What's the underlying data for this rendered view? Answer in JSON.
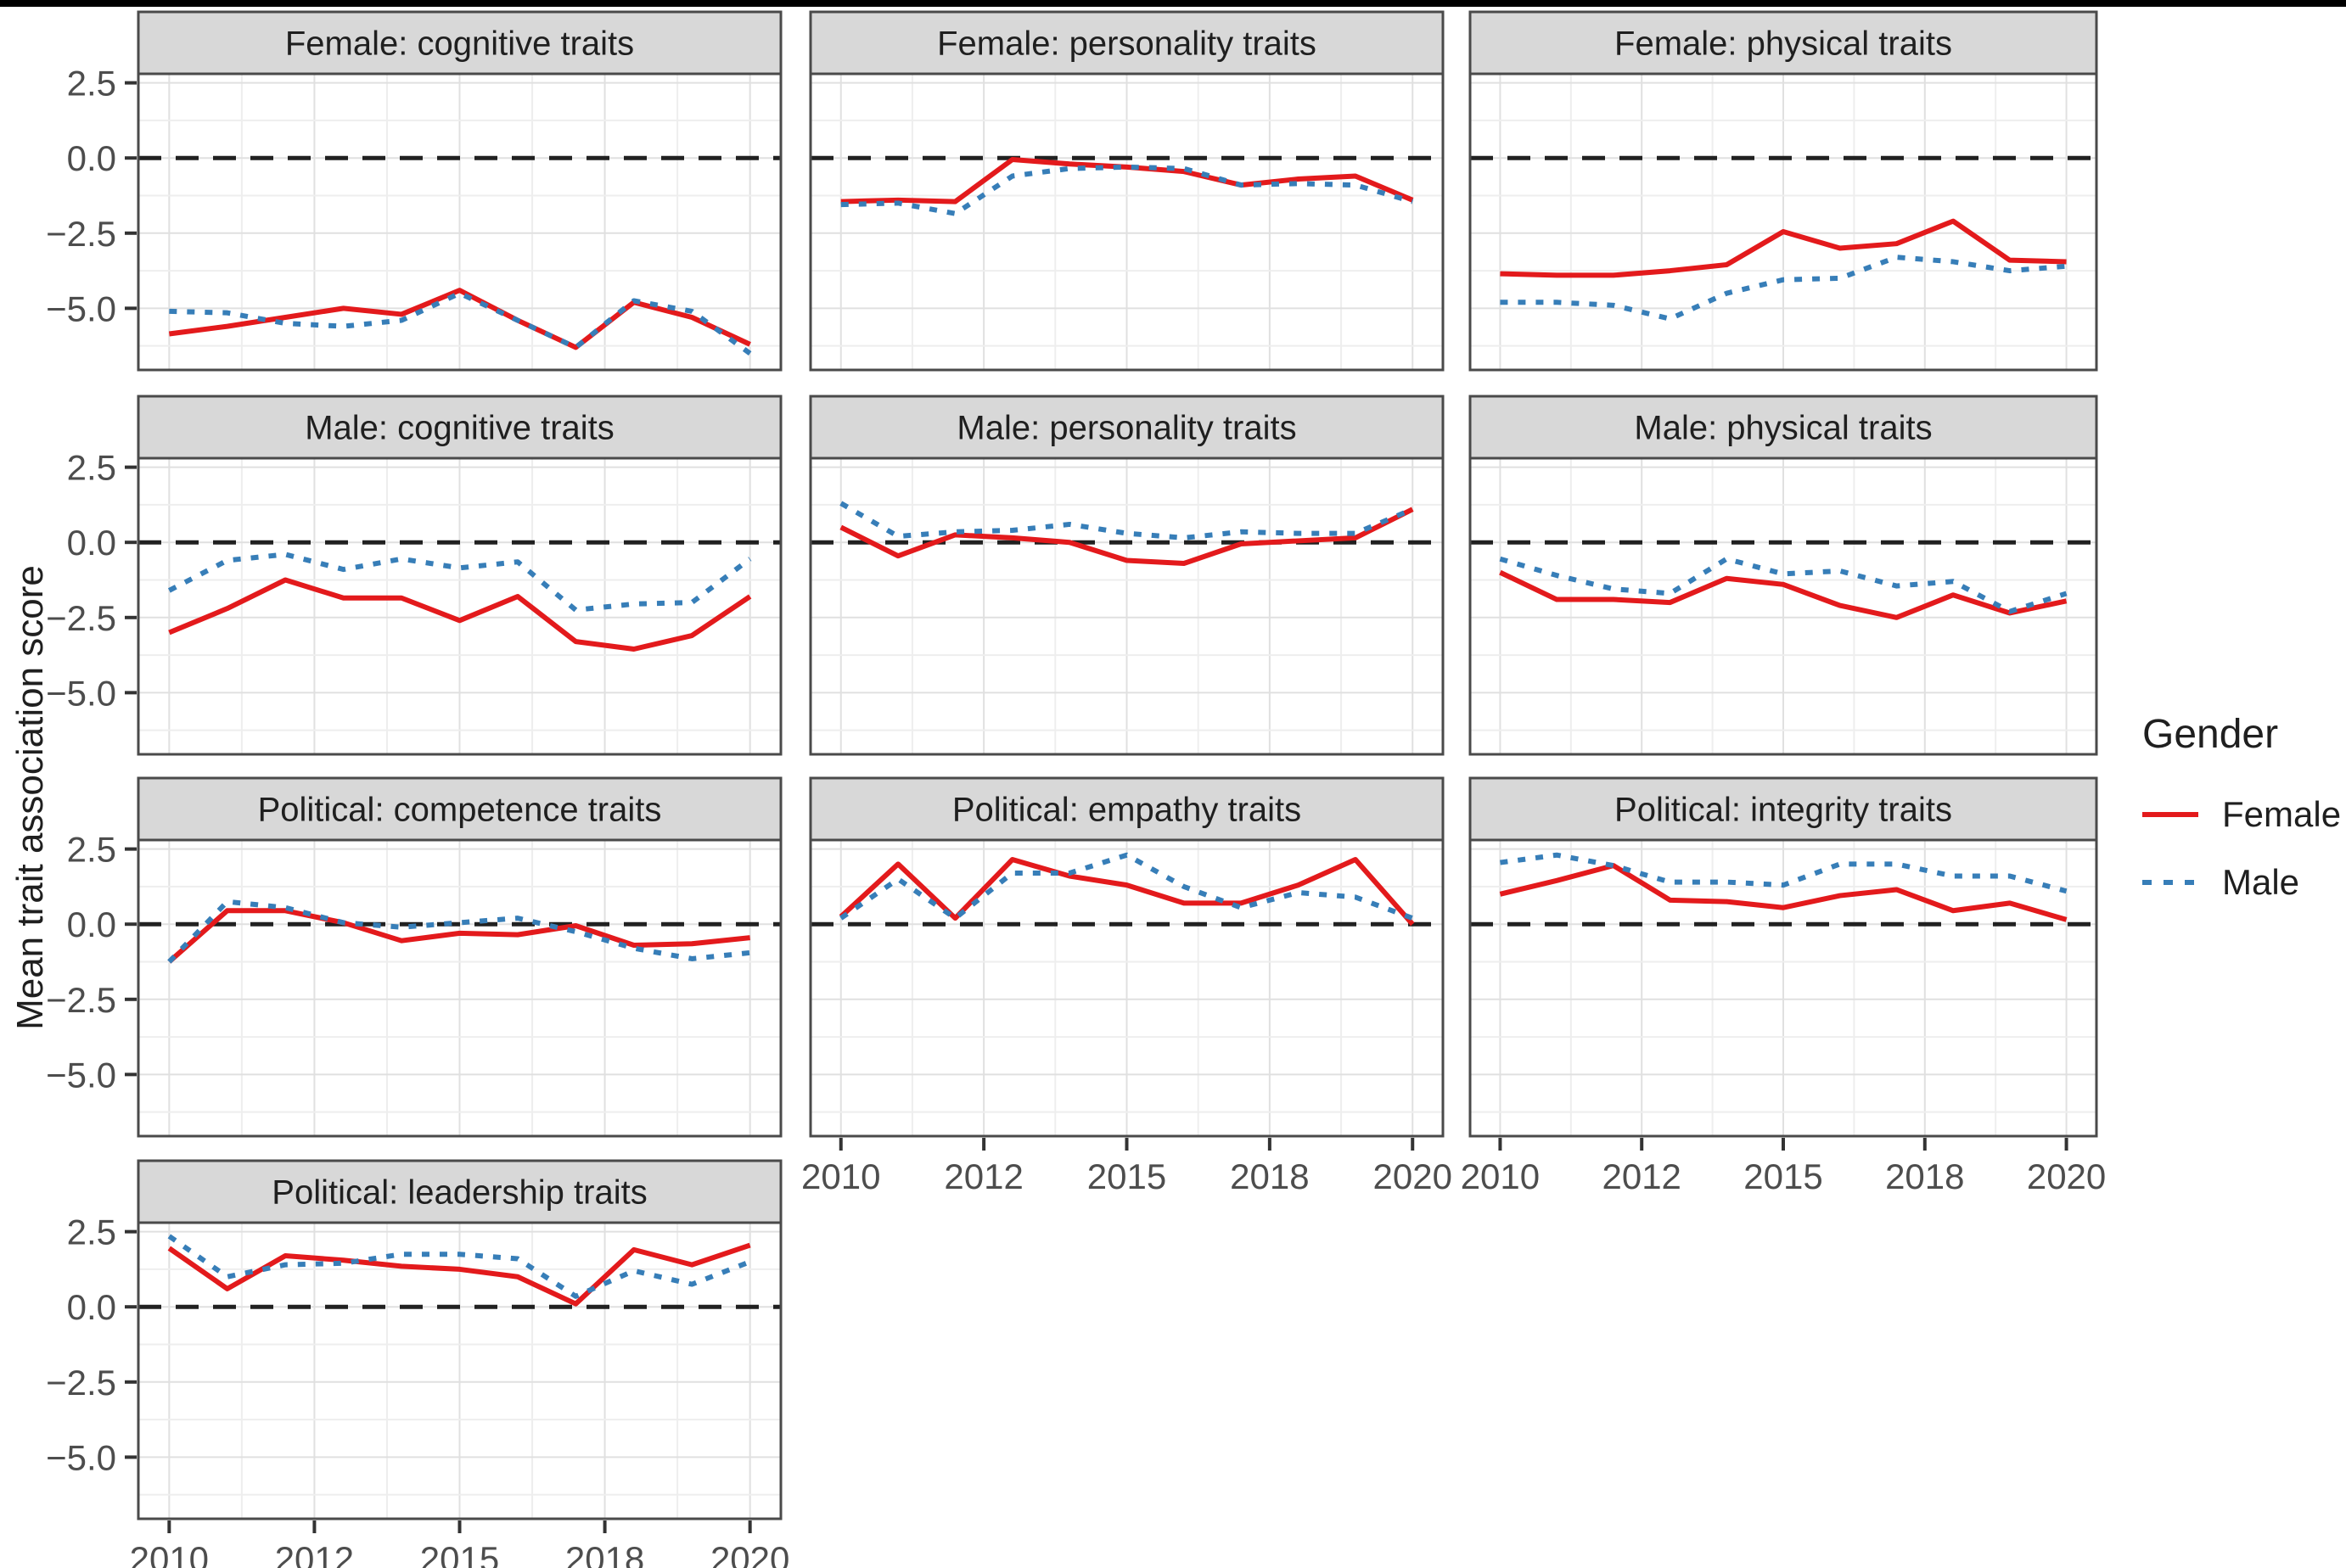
{
  "figure": {
    "y_axis_title": "Mean trait association score",
    "legend": {
      "title": "Gender",
      "items": [
        {
          "label": "Female",
          "style": "solid",
          "color": "#e31a1c"
        },
        {
          "label": "Male",
          "style": "dashed",
          "color": "#377eb8"
        }
      ]
    },
    "colors": {
      "female": "#e31a1c",
      "male": "#377eb8",
      "strip_bg": "#d8d8d8",
      "panel_border": "#4a4a4a",
      "grid_major": "#e0e0e0",
      "grid_minor": "#eeeeee",
      "zero_line": "#212121",
      "axis_text": "#4d4d4d",
      "strip_text": "#1f1f1f"
    }
  },
  "chart_data": {
    "type": "line",
    "x": [
      2010,
      2011,
      2012,
      2013,
      2014,
      2015,
      2016,
      2017,
      2018,
      2019,
      2020
    ],
    "x_tick_labels": [
      "2010",
      "2012",
      "2015",
      "2018",
      "2020"
    ],
    "y_ticks": [
      2.5,
      0.0,
      -2.5,
      -5.0
    ],
    "y_tick_labels": [
      "2.5",
      "0.0",
      "−2.5",
      "−5.0"
    ],
    "ylim": [
      -7.05,
      2.8
    ],
    "ylabel": "Mean trait association score",
    "reference_line_y": 0,
    "legend_title": "Gender",
    "series_names": [
      "Female",
      "Male"
    ],
    "facets": [
      {
        "title": "Female: cognitive traits",
        "row": 0,
        "col": 0,
        "show_x_axis": false,
        "female": [
          -5.85,
          -5.6,
          -5.3,
          -5.0,
          -5.2,
          -4.4,
          -5.4,
          -6.3,
          -4.8,
          -5.3,
          -6.2
        ],
        "male": [
          -5.1,
          -5.15,
          -5.5,
          -5.6,
          -5.4,
          -4.5,
          -5.4,
          -6.3,
          -4.75,
          -5.1,
          -6.5
        ]
      },
      {
        "title": "Female: personality traits",
        "row": 0,
        "col": 1,
        "show_x_axis": false,
        "female": [
          -1.45,
          -1.4,
          -1.45,
          -0.05,
          -0.2,
          -0.3,
          -0.45,
          -0.9,
          -0.7,
          -0.6,
          -1.4
        ],
        "male": [
          -1.55,
          -1.5,
          -1.85,
          -0.6,
          -0.35,
          -0.3,
          -0.35,
          -0.9,
          -0.85,
          -0.9,
          -1.45
        ]
      },
      {
        "title": "Female: physical traits",
        "row": 0,
        "col": 2,
        "show_x_axis": false,
        "female": [
          -3.85,
          -3.9,
          -3.9,
          -3.75,
          -3.55,
          -2.45,
          -3.0,
          -2.85,
          -2.1,
          -3.4,
          -3.45
        ],
        "male": [
          -4.8,
          -4.8,
          -4.9,
          -5.35,
          -4.5,
          -4.05,
          -4.0,
          -3.3,
          -3.45,
          -3.75,
          -3.6
        ]
      },
      {
        "title": "Male: cognitive traits",
        "row": 1,
        "col": 0,
        "show_x_axis": false,
        "female": [
          -3.0,
          -2.2,
          -1.25,
          -1.85,
          -1.85,
          -2.6,
          -1.8,
          -3.3,
          -3.55,
          -3.1,
          -1.8
        ],
        "male": [
          -1.6,
          -0.6,
          -0.4,
          -0.9,
          -0.55,
          -0.85,
          -0.65,
          -2.25,
          -2.05,
          -2.0,
          -0.55
        ]
      },
      {
        "title": "Male: personality traits",
        "row": 1,
        "col": 1,
        "show_x_axis": false,
        "female": [
          0.5,
          -0.45,
          0.25,
          0.15,
          0.0,
          -0.6,
          -0.7,
          -0.05,
          0.05,
          0.15,
          1.1
        ],
        "male": [
          1.3,
          0.2,
          0.35,
          0.4,
          0.6,
          0.3,
          0.15,
          0.35,
          0.3,
          0.3,
          1.1
        ]
      },
      {
        "title": "Male: physical traits",
        "row": 1,
        "col": 2,
        "show_x_axis": false,
        "female": [
          -1.0,
          -1.9,
          -1.9,
          -2.0,
          -1.2,
          -1.4,
          -2.1,
          -2.5,
          -1.75,
          -2.35,
          -1.95
        ],
        "male": [
          -0.55,
          -1.1,
          -1.55,
          -1.7,
          -0.55,
          -1.05,
          -0.95,
          -1.45,
          -1.3,
          -2.3,
          -1.7
        ]
      },
      {
        "title": "Political: competence traits",
        "row": 2,
        "col": 0,
        "show_x_axis": false,
        "female": [
          -1.25,
          0.45,
          0.45,
          0.05,
          -0.55,
          -0.3,
          -0.35,
          -0.05,
          -0.7,
          -0.65,
          -0.45
        ],
        "male": [
          -1.25,
          0.75,
          0.55,
          0.05,
          -0.1,
          0.05,
          0.2,
          -0.25,
          -0.8,
          -1.15,
          -0.95
        ]
      },
      {
        "title": "Political: empathy traits",
        "row": 2,
        "col": 1,
        "show_x_axis": true,
        "female": [
          0.25,
          2.0,
          0.2,
          2.15,
          1.6,
          1.3,
          0.7,
          0.7,
          1.3,
          2.15,
          0.0
        ],
        "male": [
          0.2,
          1.5,
          0.2,
          1.7,
          1.7,
          2.3,
          1.25,
          0.55,
          1.05,
          0.9,
          0.2
        ]
      },
      {
        "title": "Political: integrity traits",
        "row": 2,
        "col": 2,
        "show_x_axis": true,
        "female": [
          1.0,
          1.45,
          1.95,
          0.8,
          0.75,
          0.55,
          0.95,
          1.15,
          0.45,
          0.7,
          0.15
        ],
        "male": [
          2.05,
          2.3,
          1.95,
          1.4,
          1.4,
          1.3,
          2.0,
          2.0,
          1.6,
          1.6,
          1.1
        ]
      },
      {
        "title": "Political: leadership traits",
        "row": 3,
        "col": 0,
        "show_x_axis": true,
        "female": [
          1.95,
          0.6,
          1.7,
          1.55,
          1.35,
          1.25,
          1.0,
          0.1,
          1.9,
          1.4,
          2.05
        ],
        "male": [
          2.35,
          1.0,
          1.4,
          1.45,
          1.75,
          1.75,
          1.6,
          0.35,
          1.2,
          0.75,
          1.5
        ]
      }
    ]
  }
}
